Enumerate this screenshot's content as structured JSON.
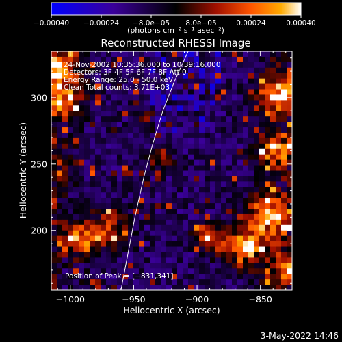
{
  "chart_data": {
    "type": "heatmap",
    "title": "Reconstructed RHESSI Image",
    "xlabel": "Heliocentric X (arcsec)",
    "ylabel": "Heliocentric Y (arcsec)",
    "xlim": [
      -1015,
      -825
    ],
    "ylim": [
      155,
      335
    ],
    "x_ticks": [
      -1000,
      -950,
      -900,
      -850
    ],
    "x_tick_labels": [
      "−1000",
      "−950",
      "−900",
      "−850"
    ],
    "y_ticks": [
      200,
      250,
      300
    ],
    "y_tick_labels": [
      "200",
      "250",
      "300"
    ],
    "colorbar": {
      "min": -0.0004,
      "max": 0.0004,
      "ticks": [
        -0.0004,
        -0.00024,
        -8e-05,
        8e-05,
        0.00024,
        0.0004
      ],
      "tick_labels": [
        "−0.00040",
        "−0.00024",
        "−8.0e−05",
        "8.0e−05",
        "0.00024",
        "0.00040"
      ],
      "units_label": "(photons cm⁻² s⁻¹ asec⁻²)",
      "colors": [
        "#0000ff",
        "#3a0099",
        "#000000",
        "#a01000",
        "#ff5500",
        "#ffaa00",
        "#ffffff"
      ]
    },
    "annotations": [
      "24-Nov-2002 10:35:36.000 to 10:39:16.000",
      "Detectors: 3F 4F 5F 6F 7F 8F Att 0",
      "Energy Range: 25.0 - 50.0 keV",
      "Clean    Total counts: 3.71E+03"
    ],
    "peak_label": "Position of Peak = [−831,341]",
    "peak_position": [
      -831,
      341
    ],
    "limb_curve": [
      [
        -960,
        155
      ],
      [
        -955,
        180
      ],
      [
        -949,
        210
      ],
      [
        -942,
        240
      ],
      [
        -935,
        265
      ],
      [
        -927,
        290
      ],
      [
        -918,
        312
      ],
      [
        -907,
        335
      ]
    ]
  },
  "footer": {
    "date_stamp": "3-May-2022 14:46"
  }
}
